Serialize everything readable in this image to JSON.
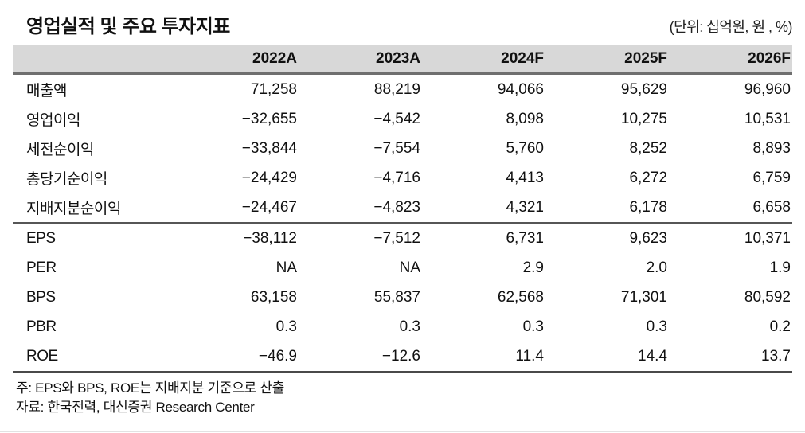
{
  "page": {
    "title": "영업실적 및 주요 투자지표",
    "unit_label": "(단위: 십억원, 원 , %)"
  },
  "table": {
    "columns": [
      "2022A",
      "2023A",
      "2024F",
      "2025F",
      "2026F"
    ],
    "sections": [
      {
        "name": "operating-results",
        "rows": [
          {
            "label": "매출액",
            "values": [
              "71,258",
              "88,219",
              "94,066",
              "95,629",
              "96,960"
            ]
          },
          {
            "label": "영업이익",
            "values": [
              "−32,655",
              "−4,542",
              "8,098",
              "10,275",
              "10,531"
            ]
          },
          {
            "label": "세전순이익",
            "values": [
              "−33,844",
              "−7,554",
              "5,760",
              "8,252",
              "8,893"
            ]
          },
          {
            "label": "총당기순이익",
            "values": [
              "−24,429",
              "−4,716",
              "4,413",
              "6,272",
              "6,759"
            ]
          },
          {
            "label": "지배지분순이익",
            "values": [
              "−24,467",
              "−4,823",
              "4,321",
              "6,178",
              "6,658"
            ]
          }
        ]
      },
      {
        "name": "investment-indicators",
        "rows": [
          {
            "label": "EPS",
            "values": [
              "−38,112",
              "−7,512",
              "6,731",
              "9,623",
              "10,371"
            ]
          },
          {
            "label": "PER",
            "values": [
              "NA",
              "NA",
              "2.9",
              "2.0",
              "1.9"
            ]
          },
          {
            "label": "BPS",
            "values": [
              "63,158",
              "55,837",
              "62,568",
              "71,301",
              "80,592"
            ]
          },
          {
            "label": "PBR",
            "values": [
              "0.3",
              "0.3",
              "0.3",
              "0.3",
              "0.2"
            ]
          },
          {
            "label": "ROE",
            "values": [
              "−46.9",
              "−12.6",
              "11.4",
              "14.4",
              "13.7"
            ]
          }
        ]
      }
    ]
  },
  "footnotes": {
    "note": "주: EPS와 BPS, ROE는 지배지분 기준으로 산출",
    "source": "자료: 한국전력, 대신증권 Research Center"
  },
  "colors": {
    "header_band": "#d8d8d8",
    "header_rule": "#6f6f6f",
    "section_rule": "#565656",
    "text": "#111111"
  }
}
